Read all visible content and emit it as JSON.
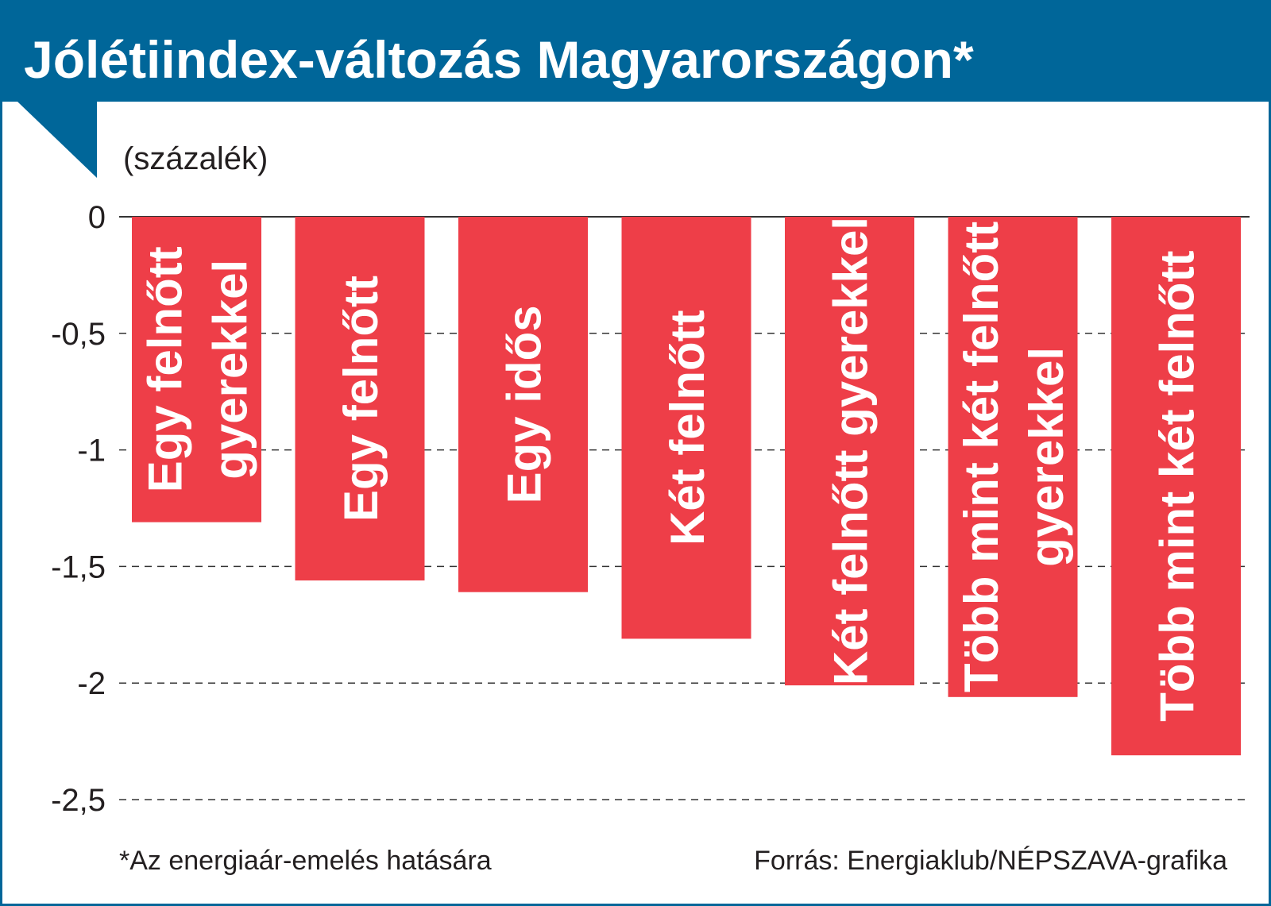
{
  "chart_data": {
    "type": "bar",
    "title": "Jólétiindex-változás Magyarországon*",
    "unit_label": "(százalék)",
    "categories": [
      [
        "Egy felnőtt",
        "gyerekkel"
      ],
      [
        "Egy felnőtt"
      ],
      [
        "Egy idős"
      ],
      [
        "Két felnőtt"
      ],
      [
        "Két felnőtt gyerekkel"
      ],
      [
        "Több mint két felnőtt",
        "gyerekkel"
      ],
      [
        "Több mint két felnőtt"
      ]
    ],
    "values": [
      -1.31,
      -1.56,
      -1.61,
      -1.81,
      -2.01,
      -2.06,
      -2.31
    ],
    "ylim": [
      -2.5,
      0
    ],
    "yticks": [
      0,
      -0.5,
      -1,
      -1.5,
      -2,
      -2.5
    ],
    "ytick_labels": [
      "0",
      "-0,5",
      "-1",
      "-1,5",
      "-2",
      "-2,5"
    ],
    "footnote": "*Az energiaár-emelés hatására",
    "source": "Forrás: Energiaklub/NÉPSZAVA-grafika",
    "colors": {
      "bar": "#ee3e48",
      "header": "#006699",
      "grid": "#333333",
      "text": "#231f20"
    }
  }
}
